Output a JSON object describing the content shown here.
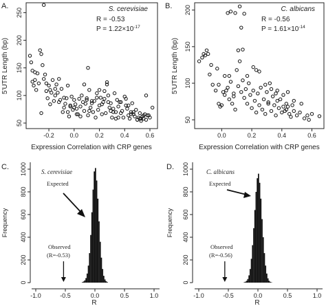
{
  "chart_data": [
    {
      "panel_label": "A.",
      "type": "scatter",
      "species": "S. cerevisiae",
      "stats": {
        "r_text": "R = -0.53",
        "p_text": "P = 1.22×10",
        "p_exp": "-17"
      },
      "xlabel": "Expression Correlation with CRP genes",
      "ylabel": "5'UTR Length (bp)",
      "xlim": [
        -0.38,
        0.66
      ],
      "ylim": [
        40,
        268
      ],
      "xticks": [
        -0.2,
        0.0,
        0.2,
        0.4,
        0.6
      ],
      "xtick_labels": [
        "-0.2",
        "0.0",
        "0.2",
        "0.4",
        "0.6"
      ],
      "yticks": [
        50,
        100,
        150,
        200,
        250
      ],
      "ytick_labels": [
        "50",
        "100",
        "150",
        "200",
        "250"
      ],
      "x": [
        -0.24,
        -0.35,
        -0.34,
        -0.33,
        -0.33,
        -0.32,
        -0.31,
        -0.3,
        -0.29,
        -0.27,
        -0.26,
        -0.25,
        -0.24,
        -0.23,
        -0.22,
        -0.21,
        -0.2,
        -0.19,
        -0.18,
        -0.17,
        -0.16,
        -0.15,
        -0.14,
        -0.13,
        -0.12,
        -0.11,
        -0.1,
        -0.09,
        -0.08,
        -0.07,
        -0.06,
        -0.05,
        -0.04,
        -0.03,
        -0.02,
        -0.01,
        0.0,
        0.01,
        0.02,
        0.03,
        0.04,
        0.05,
        0.06,
        0.07,
        0.08,
        0.09,
        0.1,
        0.11,
        0.12,
        0.13,
        0.14,
        0.15,
        0.16,
        0.17,
        0.18,
        0.19,
        0.2,
        0.21,
        0.22,
        0.23,
        0.24,
        0.25,
        0.26,
        0.27,
        0.28,
        0.29,
        0.3,
        0.31,
        0.32,
        0.33,
        0.34,
        0.35,
        0.36,
        0.37,
        0.38,
        0.39,
        0.4,
        0.41,
        0.42,
        0.43,
        0.44,
        0.45,
        0.46,
        0.47,
        0.48,
        0.49,
        0.5,
        0.51,
        0.52,
        0.53,
        0.54,
        0.55,
        0.56,
        0.57,
        0.58,
        0.6,
        0.62,
        -0.28,
        -0.22,
        -0.15,
        -0.08,
        -0.03,
        0.02,
        0.08,
        0.12,
        0.18,
        0.22,
        0.27,
        0.31,
        0.35,
        0.41,
        0.47,
        0.52,
        0.57,
        -0.31,
        -0.19,
        -0.05,
        0.05,
        0.14,
        0.24,
        0.33,
        0.43,
        0.5,
        0.55,
        -0.26,
        -0.12,
        0.0,
        0.1,
        0.2,
        0.29,
        0.37,
        0.45,
        0.53,
        0.59,
        0.11,
        0.26
      ],
      "y": [
        264,
        172,
        160,
        125,
        145,
        118,
        128,
        110,
        140,
        182,
        175,
        155,
        130,
        138,
        122,
        95,
        118,
        110,
        105,
        128,
        90,
        100,
        120,
        105,
        88,
        92,
        112,
        70,
        78,
        85,
        95,
        70,
        62,
        82,
        98,
        74,
        92,
        84,
        76,
        66,
        94,
        80,
        100,
        88,
        72,
        85,
        95,
        64,
        110,
        78,
        86,
        70,
        90,
        60,
        104,
        74,
        82,
        96,
        66,
        88,
        94,
        68,
        120,
        100,
        78,
        86,
        60,
        70,
        104,
        58,
        92,
        80,
        88,
        68,
        72,
        60,
        98,
        82,
        76,
        64,
        58,
        70,
        86,
        66,
        62,
        74,
        56,
        60,
        68,
        54,
        62,
        58,
        66,
        56,
        64,
        60,
        78,
        122,
        108,
        112,
        96,
        80,
        66,
        120,
        72,
        96,
        84,
        88,
        76,
        60,
        94,
        70,
        58,
        100,
        142,
        84,
        118,
        62,
        90,
        108,
        70,
        82,
        56,
        64,
        68,
        130,
        78,
        92,
        110,
        72,
        88,
        66,
        58,
        64,
        150,
        124
      ]
    },
    {
      "panel_label": "B.",
      "type": "scatter",
      "species": "C. albicans",
      "stats": {
        "r_text": "R = -0.56",
        "p_text": "P = 1.61×10",
        "p_exp": "-14"
      },
      "xlabel": "Expression Correlation with CRP genes",
      "ylabel": "5'UTR Length (bp)",
      "xlim": [
        -0.18,
        0.68
      ],
      "ylim": [
        38,
        210
      ],
      "xticks": [
        0.0,
        0.2,
        0.4,
        0.6
      ],
      "xtick_labels": [
        "0.0",
        "0.2",
        "0.4",
        "0.6"
      ],
      "yticks": [
        50,
        100,
        150,
        200
      ],
      "ytick_labels": [
        "50",
        "100",
        "150",
        "200"
      ],
      "x": [
        -0.15,
        -0.13,
        -0.12,
        -0.11,
        -0.1,
        -0.09,
        -0.08,
        -0.07,
        -0.06,
        -0.04,
        -0.03,
        -0.02,
        -0.01,
        0.0,
        0.01,
        0.02,
        0.03,
        0.04,
        0.05,
        0.06,
        0.07,
        0.08,
        0.09,
        0.1,
        0.11,
        0.12,
        0.13,
        0.14,
        0.15,
        0.16,
        0.17,
        0.18,
        0.19,
        0.2,
        0.21,
        0.22,
        0.23,
        0.24,
        0.25,
        0.26,
        0.27,
        0.28,
        0.29,
        0.3,
        0.31,
        0.32,
        0.33,
        0.34,
        0.35,
        0.36,
        0.37,
        0.38,
        0.39,
        0.4,
        0.41,
        0.42,
        0.43,
        0.44,
        0.45,
        0.46,
        0.47,
        0.48,
        0.5,
        0.52,
        0.55,
        0.58,
        0.6,
        0.65,
        0.04,
        0.06,
        0.09,
        0.12,
        0.13,
        0.15,
        0.14,
        0.02,
        0.05,
        0.11,
        0.21,
        0.25,
        0.29,
        0.33,
        0.37,
        0.41,
        0.44,
        0.48,
        -0.02,
        0.08,
        0.17,
        0.23,
        0.31,
        0.36,
        0.43,
        0.53,
        0.57
      ],
      "y": [
        130,
        135,
        140,
        138,
        145,
        140,
        112,
        125,
        98,
        90,
        120,
        72,
        68,
        70,
        88,
        110,
        90,
        94,
        78,
        102,
        72,
        86,
        64,
        118,
        96,
        130,
        88,
        104,
        80,
        92,
        72,
        100,
        84,
        66,
        90,
        76,
        60,
        86,
        70,
        94,
        64,
        78,
        58,
        88,
        74,
        100,
        62,
        82,
        70,
        56,
        90,
        66,
        78,
        60,
        84,
        62,
        72,
        68,
        58,
        54,
        70,
        62,
        56,
        60,
        52,
        50,
        58,
        55,
        196,
        198,
        196,
        205,
        176,
        195,
        146,
        84,
        110,
        145,
        122,
        116,
        98,
        92,
        76,
        68,
        88,
        76,
        98,
        82,
        110,
        118,
        72,
        86,
        64,
        72,
        56
      ]
    },
    {
      "panel_label": "C.",
      "type": "bar",
      "subtype": "histogram",
      "species": "S. cerevisiae",
      "xlabel": "R",
      "ylabel": "Frequency",
      "xlim": [
        -1.0,
        1.0
      ],
      "ylim": [
        0,
        1000
      ],
      "xticks": [
        -1.0,
        -0.5,
        0.0,
        0.5,
        1.0
      ],
      "xtick_labels": [
        "-1.0",
        "-0.5",
        "0.0",
        "0.5",
        "1.0"
      ],
      "yticks": [
        0,
        200,
        400,
        600,
        800,
        1000
      ],
      "ytick_labels": [
        "0",
        "200",
        "400",
        "600",
        "800",
        "1000"
      ],
      "bin_width": 0.02,
      "bin_centers": [
        -0.21,
        -0.19,
        -0.17,
        -0.15,
        -0.13,
        -0.11,
        -0.09,
        -0.07,
        -0.05,
        -0.03,
        -0.01,
        0.01,
        0.03,
        0.05,
        0.07,
        0.09,
        0.11,
        0.13,
        0.15,
        0.17,
        0.19,
        0.21
      ],
      "values": [
        5,
        10,
        20,
        40,
        80,
        150,
        260,
        420,
        620,
        820,
        980,
        1010,
        900,
        740,
        540,
        360,
        220,
        120,
        60,
        28,
        12,
        5
      ],
      "annotations": {
        "expected": "Expected",
        "observed_line1": "Observed",
        "observed_line2": "(R=-0.53)",
        "observed_r": -0.53
      }
    },
    {
      "panel_label": "D.",
      "type": "bar",
      "subtype": "histogram",
      "species": "C. albicans",
      "xlabel": "R",
      "ylabel": "Frequency",
      "xlim": [
        -1.0,
        1.0
      ],
      "ylim": [
        0,
        1000
      ],
      "xticks": [
        -1.0,
        -0.5,
        0.0,
        0.5,
        1.0
      ],
      "xtick_labels": [
        "-1.0",
        "-0.5",
        "0.0",
        "0.5",
        "1.0"
      ],
      "yticks": [
        0,
        200,
        400,
        600,
        800,
        1000
      ],
      "ytick_labels": [
        "0",
        "200",
        "400",
        "600",
        "800",
        "1000"
      ],
      "bin_width": 0.02,
      "bin_centers": [
        -0.23,
        -0.21,
        -0.19,
        -0.17,
        -0.15,
        -0.13,
        -0.11,
        -0.09,
        -0.07,
        -0.05,
        -0.03,
        -0.01,
        0.01,
        0.03,
        0.05,
        0.07,
        0.09,
        0.11,
        0.13,
        0.15,
        0.17,
        0.19,
        0.21,
        0.23
      ],
      "values": [
        4,
        8,
        16,
        32,
        64,
        120,
        210,
        330,
        480,
        640,
        800,
        920,
        960,
        880,
        740,
        560,
        400,
        260,
        150,
        80,
        38,
        16,
        7,
        3
      ],
      "annotations": {
        "expected": "Expected",
        "observed_line1": "Observed",
        "observed_line2": "(R=-0.56)",
        "observed_r": -0.56
      }
    }
  ]
}
